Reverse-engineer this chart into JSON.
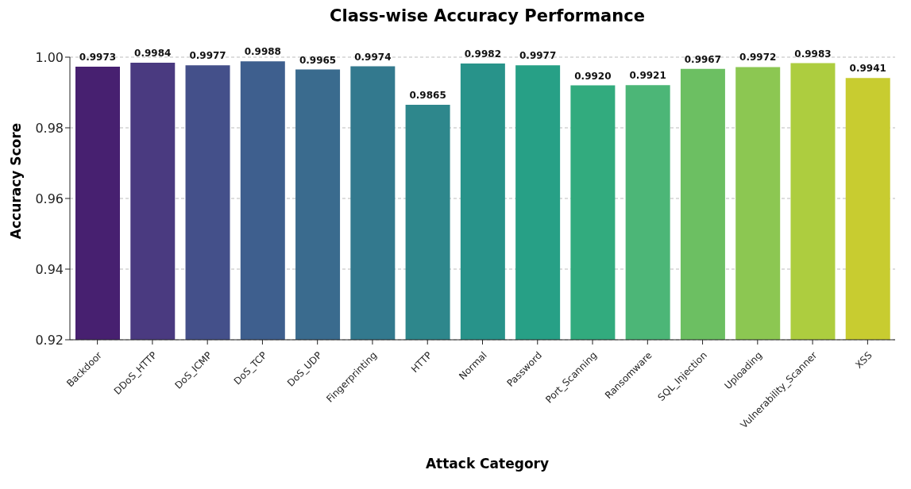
{
  "chart_data": {
    "type": "bar",
    "title": "Class-wise Accuracy Performance",
    "xlabel": "Attack Category",
    "ylabel": "Accuracy Score",
    "categories": [
      "Backdoor",
      "DDoS_HTTP",
      "DoS_ICMP",
      "DoS_TCP",
      "DoS_UDP",
      "Fingerprinting",
      "HTTP",
      "Normal",
      "Password",
      "Port_Scanning",
      "Ransomware",
      "SQL_Injection",
      "Uploading",
      "Vulnerability_Scanner",
      "XSS"
    ],
    "values": [
      0.9973,
      0.9984,
      0.9977,
      0.9988,
      0.9965,
      0.9974,
      0.9865,
      0.9982,
      0.9977,
      0.992,
      0.9921,
      0.9967,
      0.9972,
      0.9983,
      0.9941
    ],
    "colors": [
      "#472070",
      "#4a3a80",
      "#44508a",
      "#3e5f8e",
      "#3a6b8e",
      "#33798e",
      "#2e878c",
      "#28938a",
      "#27a086",
      "#32ab7e",
      "#4cb677",
      "#6cbf62",
      "#8cc752",
      "#adcd3f",
      "#c8cc30"
    ],
    "value_labels": [
      "0.9973",
      "0.9984",
      "0.9977",
      "0.9988",
      "0.9965",
      "0.9974",
      "0.9865",
      "0.9982",
      "0.9977",
      "0.9920",
      "0.9921",
      "0.9967",
      "0.9972",
      "0.9983",
      "0.9941"
    ],
    "ylim": [
      0.92,
      1
    ],
    "yticks": [
      0.92,
      0.94,
      0.96,
      0.98,
      {
        "value": 1,
        "label": "1.00"
      }
    ],
    "grid": "y"
  }
}
